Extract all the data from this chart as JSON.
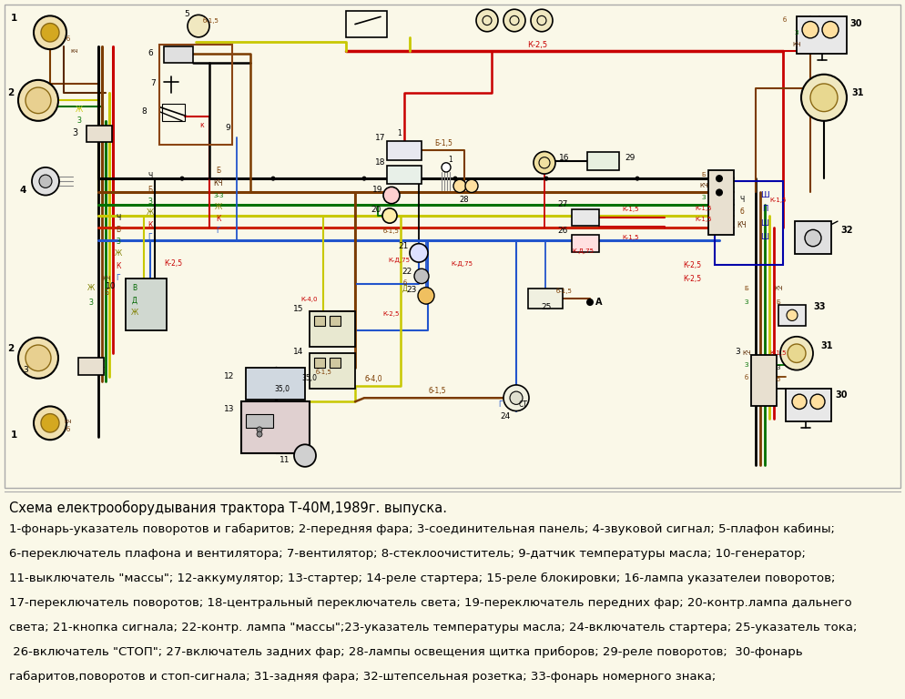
{
  "background_color": "#faf8e8",
  "title": "Схема електрооборудывания трактора Т-40М,1989г. выпуска.",
  "title_fontsize": 10.5,
  "legend_lines": [
    "1-фонарь-указатель поворотов и габаритов; 2-передняя фара; 3-соединительная панель; 4-звуковой сигнал; 5-плафон кабины;",
    "6-переключатель плафона и вентилятора; 7-вентилятор; 8-стеклоочиститель; 9-датчик температуры масла; 10-генератор;",
    "11-выключатель \"массы\"; 12-аккумулятор; 13-стартер; 14-реле стартера; 15-реле блокировки; 16-лампа указателеи поворотов;",
    "17-переключатель поворотов; 18-центральный переключатель света; 19-переключатель передних фар; 20-контр.лампа дальнего",
    "света; 21-кнопка сигнала; 22-контр. лампа \"массы\";23-указатель температуры масла; 24-включатель стартера; 25-указатель тока;",
    " 26-включатель \"СТОП\"; 27-включатель задних фар; 28-лампы освещения щитка приборов; 29-реле поворотов;  30-фонарь",
    "габаритов,поворотов и стоп-сигнала; 31-задняя фара; 32-штепсельная розетка; 33-фонарь номерного знака;"
  ],
  "legend_fontsize": 9.5,
  "wire_colors": {
    "red": "#c80000",
    "brown": "#7B3B00",
    "green": "#007000",
    "blue": "#0000bb",
    "yellow": "#c8c800",
    "black": "#000000",
    "orange": "#c86400",
    "gray": "#606060",
    "dark_brown": "#5a2800"
  }
}
